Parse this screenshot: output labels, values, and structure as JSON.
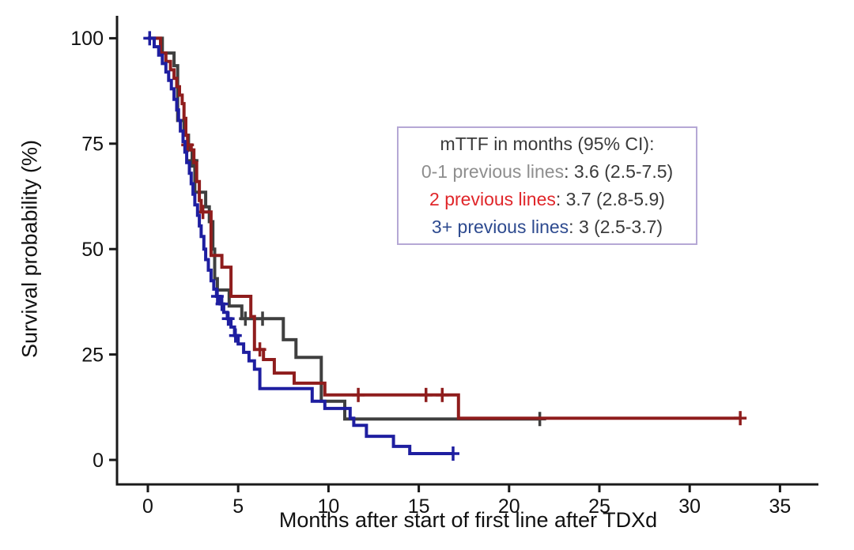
{
  "chart_data": {
    "type": "line",
    "subtype": "kaplan-meier-step-survival",
    "title": "",
    "xlabel": "Months after start of first line after TDXd",
    "ylabel": "Survival probability (%)",
    "xlim": [
      0,
      37
    ],
    "ylim": [
      0,
      100
    ],
    "xticks": [
      0,
      5,
      10,
      15,
      20,
      25,
      30,
      35
    ],
    "yticks": [
      0,
      25,
      50,
      75,
      100
    ],
    "grid": false,
    "legend_position": "upper-right-inset-box",
    "series": [
      {
        "name": "0-1 previous lines",
        "color": "#3f3f3f",
        "median_ttf_months": "3.6 (2.5-7.5)",
        "steps": [
          [
            0,
            100
          ],
          [
            0.8,
            96.5
          ],
          [
            1.45,
            93.5
          ],
          [
            1.65,
            80.5
          ],
          [
            2.0,
            77
          ],
          [
            2.25,
            73.5
          ],
          [
            2.45,
            71
          ],
          [
            2.6,
            63.5
          ],
          [
            3.2,
            60
          ],
          [
            3.4,
            56.5
          ],
          [
            3.6,
            50
          ],
          [
            3.7,
            43
          ],
          [
            3.85,
            40.3
          ],
          [
            4.5,
            36.5
          ],
          [
            5.2,
            33.5
          ],
          [
            7.5,
            28.5
          ],
          [
            8.2,
            24.3
          ],
          [
            9.6,
            13.9
          ],
          [
            10.9,
            9.7
          ],
          [
            21.7,
            9.7
          ]
        ],
        "censors": [
          [
            2.45,
            71
          ],
          [
            5.4,
            33.5
          ],
          [
            6.35,
            33.5
          ],
          [
            21.7,
            9.7
          ]
        ]
      },
      {
        "name": "2 previous lines",
        "color": "#8f1d1d",
        "median_ttf_months": "3.7 (2.8-5.9)",
        "steps": [
          [
            0,
            100
          ],
          [
            0.7,
            96.5
          ],
          [
            1.0,
            94.5
          ],
          [
            1.25,
            92.5
          ],
          [
            1.45,
            90.5
          ],
          [
            1.6,
            88.5
          ],
          [
            1.75,
            86.5
          ],
          [
            1.9,
            84.5
          ],
          [
            2.0,
            81
          ],
          [
            2.1,
            77
          ],
          [
            2.2,
            74.7
          ],
          [
            2.4,
            73.5
          ],
          [
            2.55,
            70.5
          ],
          [
            2.7,
            66
          ],
          [
            2.85,
            61.5
          ],
          [
            2.95,
            58.8
          ],
          [
            3.5,
            48.5
          ],
          [
            4.1,
            45.7
          ],
          [
            4.6,
            38.8
          ],
          [
            5.7,
            34
          ],
          [
            5.9,
            26.2
          ],
          [
            6.4,
            23.8
          ],
          [
            7.0,
            20.6
          ],
          [
            8.1,
            18.2
          ],
          [
            9.8,
            15.4
          ],
          [
            17.2,
            9.9
          ],
          [
            32.8,
            9.9
          ]
        ],
        "censors": [
          [
            2.2,
            74.7
          ],
          [
            3.05,
            58.8
          ],
          [
            6.2,
            26.2
          ],
          [
            11.65,
            15.4
          ],
          [
            15.4,
            15.4
          ],
          [
            16.3,
            15.4
          ],
          [
            32.8,
            9.9
          ]
        ]
      },
      {
        "name": "3+ previous lines",
        "color": "#1e1ea0",
        "median_ttf_months": "3 (2.5-3.7)",
        "steps": [
          [
            0,
            100
          ],
          [
            0.35,
            98
          ],
          [
            0.6,
            96
          ],
          [
            0.8,
            94
          ],
          [
            1.0,
            92
          ],
          [
            1.15,
            90
          ],
          [
            1.3,
            88
          ],
          [
            1.45,
            85.5
          ],
          [
            1.6,
            83
          ],
          [
            1.7,
            80.5
          ],
          [
            1.8,
            78
          ],
          [
            1.95,
            75.5
          ],
          [
            2.05,
            73
          ],
          [
            2.15,
            70.5
          ],
          [
            2.3,
            68
          ],
          [
            2.4,
            65.5
          ],
          [
            2.5,
            63
          ],
          [
            2.6,
            60.5
          ],
          [
            2.75,
            58
          ],
          [
            2.85,
            55.5
          ],
          [
            2.95,
            53
          ],
          [
            3.1,
            50
          ],
          [
            3.2,
            47.5
          ],
          [
            3.35,
            45
          ],
          [
            3.5,
            42.5
          ],
          [
            3.65,
            40.5
          ],
          [
            3.8,
            38.8
          ],
          [
            4.0,
            37
          ],
          [
            4.2,
            35
          ],
          [
            4.4,
            33.5
          ],
          [
            4.6,
            31.5
          ],
          [
            4.8,
            29.5
          ],
          [
            5.0,
            27.5
          ],
          [
            5.3,
            25.5
          ],
          [
            5.6,
            23.5
          ],
          [
            5.9,
            21.5
          ],
          [
            6.2,
            16.9
          ],
          [
            9.1,
            13.9
          ],
          [
            9.8,
            12.2
          ],
          [
            11.2,
            9.9
          ],
          [
            11.4,
            8.2
          ],
          [
            12.1,
            5.6
          ],
          [
            13.6,
            3.2
          ],
          [
            14.5,
            1.5
          ],
          [
            16.9,
            1.5
          ]
        ],
        "censors": [
          [
            0.1,
            100
          ],
          [
            3.85,
            38.8
          ],
          [
            4.1,
            37
          ],
          [
            4.45,
            33.5
          ],
          [
            4.85,
            29.5
          ],
          [
            16.9,
            1.5
          ]
        ]
      }
    ]
  },
  "legend": {
    "title": "mTTF in months (95% CI):",
    "entries": [
      {
        "label": "0-1 previous lines",
        "value": ": 3.6 (2.5-7.5)",
        "color": "#8e8e8e"
      },
      {
        "label": "2 previous lines",
        "value": ": 3.7 (2.8-5.9)",
        "color": "#e0262a"
      },
      {
        "label": "3+ previous lines",
        "value": ": 3 (2.5-3.7)",
        "color": "#2d4a8f"
      }
    ],
    "border_color": "#b5a8d5"
  }
}
